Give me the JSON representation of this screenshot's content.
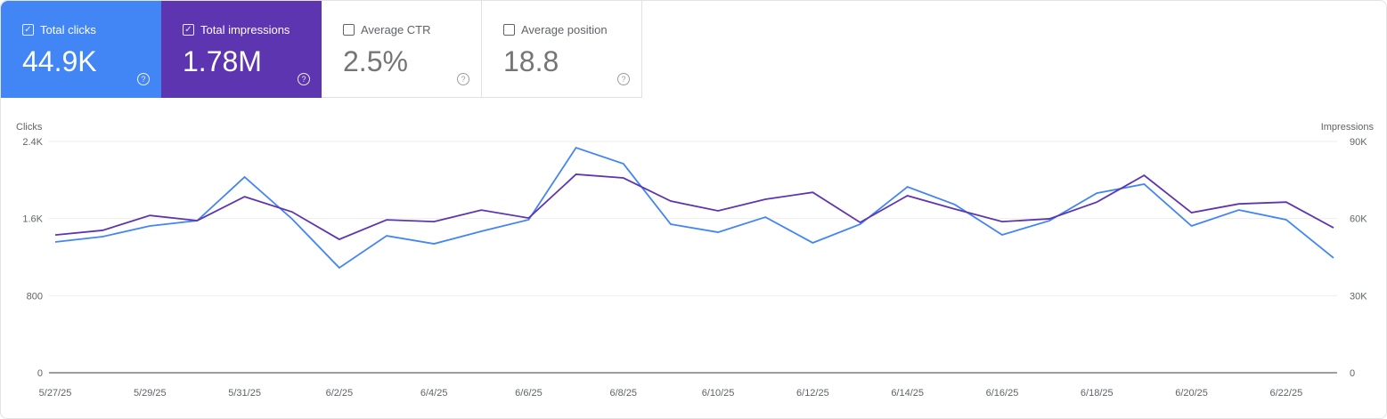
{
  "cards": [
    {
      "label": "Total clicks",
      "value": "44.9K",
      "checked": true,
      "color": "#4285f4"
    },
    {
      "label": "Total impressions",
      "value": "1.78M",
      "checked": true,
      "color": "#5e35b1"
    },
    {
      "label": "Average CTR",
      "value": "2.5%",
      "checked": false,
      "color": "#ffffff"
    },
    {
      "label": "Average position",
      "value": "18.8",
      "checked": false,
      "color": "#ffffff"
    }
  ],
  "chart_data": {
    "type": "line",
    "left_axis_label": "Clicks",
    "right_axis_label": "Impressions",
    "left_ticks": [
      "0",
      "800",
      "1.6K",
      "2.4K"
    ],
    "left_ylim": [
      0,
      2400
    ],
    "right_ticks": [
      "0",
      "30K",
      "60K",
      "90K"
    ],
    "right_ylim": [
      0,
      90000
    ],
    "x": [
      "5/27/25",
      "5/28/25",
      "5/29/25",
      "5/30/25",
      "5/31/25",
      "6/1/25",
      "6/2/25",
      "6/3/25",
      "6/4/25",
      "6/5/25",
      "6/6/25",
      "6/7/25",
      "6/8/25",
      "6/9/25",
      "6/10/25",
      "6/11/25",
      "6/12/25",
      "6/13/25",
      "6/14/25",
      "6/15/25",
      "6/16/25",
      "6/17/25",
      "6/18/25",
      "6/19/25",
      "6/20/25",
      "6/21/25",
      "6/22/25",
      "6/23/25"
    ],
    "x_tick_labels": [
      "5/27/25",
      "5/29/25",
      "5/31/25",
      "6/2/25",
      "6/4/25",
      "6/6/25",
      "6/8/25",
      "6/10/25",
      "6/12/25",
      "6/14/25",
      "6/16/25",
      "6/18/25",
      "6/20/25",
      "6/22/25"
    ],
    "grid": true,
    "series": [
      {
        "axis": "left",
        "color": "#4285f4",
        "values": [
          1357,
          1412,
          1523,
          1578,
          2031,
          1597,
          1089,
          1421,
          1338,
          1468,
          1588,
          2335,
          2169,
          1541,
          1458,
          1615,
          1348,
          1541,
          1929,
          1745,
          1431,
          1578,
          1864,
          1957,
          1523,
          1689,
          1588,
          1191
        ]
      },
      {
        "axis": "right",
        "color": "#5e35b1",
        "values": [
          53600,
          55400,
          61200,
          59200,
          68500,
          62600,
          51900,
          59500,
          58800,
          63300,
          60200,
          77200,
          75800,
          66800,
          63000,
          67500,
          70200,
          58500,
          68900,
          63700,
          58800,
          59900,
          66400,
          76800,
          62300,
          65700,
          66400,
          56400
        ]
      }
    ]
  }
}
